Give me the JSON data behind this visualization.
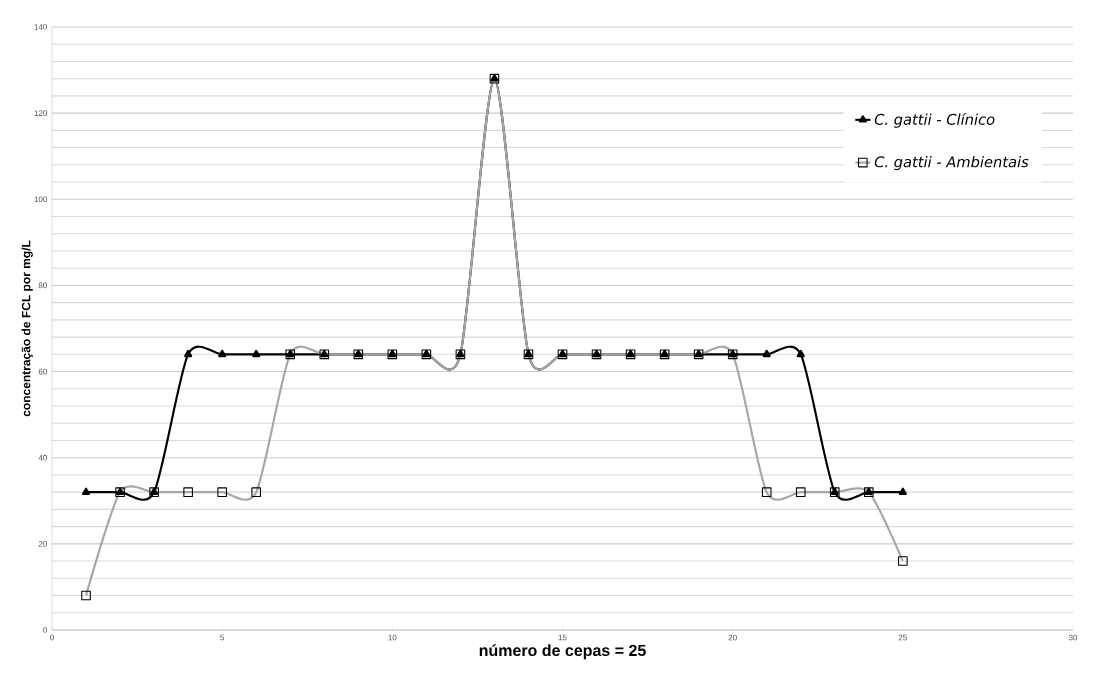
{
  "chart_data": {
    "type": "line",
    "xlabel": "número de cepas = 25",
    "ylabel": "concentração de FCL por mg/L",
    "x": [
      1,
      2,
      3,
      4,
      5,
      6,
      7,
      8,
      9,
      10,
      11,
      12,
      13,
      14,
      15,
      16,
      17,
      18,
      19,
      20,
      21,
      22,
      23,
      24,
      25
    ],
    "series": [
      {
        "name": "C. gattii - Clínico",
        "color": "#000000",
        "marker": "triangle",
        "values": [
          32,
          32,
          32,
          64,
          64,
          64,
          64,
          64,
          64,
          64,
          64,
          64,
          128,
          64,
          64,
          64,
          64,
          64,
          64,
          64,
          64,
          64,
          32,
          32,
          32
        ]
      },
      {
        "name": "C. gattii - Ambientais",
        "color": "#a6a6a6",
        "marker": "square",
        "values": [
          8,
          32,
          32,
          32,
          32,
          32,
          64,
          64,
          64,
          64,
          64,
          64,
          128,
          64,
          64,
          64,
          64,
          64,
          64,
          64,
          32,
          32,
          32,
          32,
          16
        ]
      }
    ],
    "xlim": [
      0,
      30
    ],
    "xticks": [
      0,
      5,
      10,
      15,
      20,
      25,
      30
    ],
    "ylim": [
      0,
      140
    ],
    "yticks": [
      0,
      20,
      40,
      60,
      80,
      100,
      120,
      140
    ],
    "grid": "y",
    "legend": "top right",
    "line_style": "solid"
  }
}
